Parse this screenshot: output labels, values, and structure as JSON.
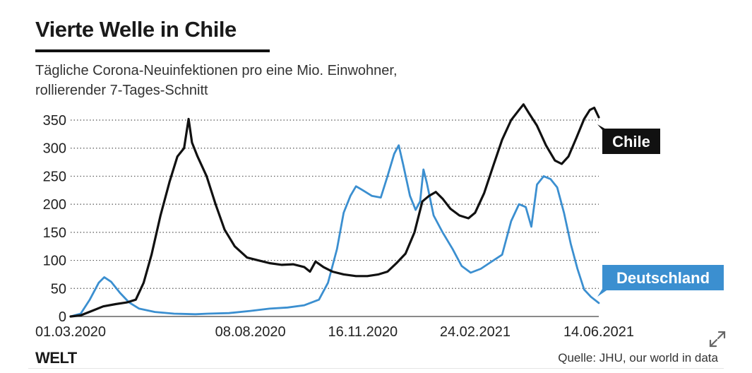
{
  "header": {
    "title": "Vierte Welle in Chile",
    "subtitle_line1": "Tägliche Corona-Neuinfektionen pro eine Mio. Einwohner,",
    "subtitle_line2": "rollierender 7-Tages-Schnitt"
  },
  "footer": {
    "logo": "WELT",
    "source": "Quelle: JHU, our world in data"
  },
  "colors": {
    "chile": "#111111",
    "deutschland": "#3b8fd0",
    "grid": "#555555",
    "axis_text": "#222222"
  },
  "icons": {
    "expand": "expand-icon"
  },
  "chart_data": {
    "type": "line",
    "title": "Vierte Welle in Chile",
    "subtitle": "Tägliche Corona-Neuinfektionen pro eine Mio. Einwohner, rollierender 7-Tages-Schnitt",
    "xlabel": "",
    "ylabel": "",
    "x_ticks": [
      "01.03.2020",
      "08.08.2020",
      "16.11.2020",
      "24.02.2021",
      "14.06.2021"
    ],
    "y_ticks": [
      0,
      50,
      100,
      150,
      200,
      250,
      300,
      350
    ],
    "ylim": [
      0,
      360
    ],
    "xlim": [
      "2020-03-01",
      "2021-06-14"
    ],
    "grid": true,
    "grid_style": "dotted-horizontal",
    "legend": "direct labels at right end of lines",
    "series": [
      {
        "name": "Chile",
        "color": "#111111",
        "points": [
          [
            "2020-03-01",
            0
          ],
          [
            "2020-03-10",
            2
          ],
          [
            "2020-03-20",
            10
          ],
          [
            "2020-03-30",
            18
          ],
          [
            "2020-04-10",
            22
          ],
          [
            "2020-04-20",
            25
          ],
          [
            "2020-04-28",
            30
          ],
          [
            "2020-05-05",
            60
          ],
          [
            "2020-05-12",
            110
          ],
          [
            "2020-05-20",
            180
          ],
          [
            "2020-05-28",
            240
          ],
          [
            "2020-06-04",
            285
          ],
          [
            "2020-06-10",
            300
          ],
          [
            "2020-06-14",
            352
          ],
          [
            "2020-06-17",
            310
          ],
          [
            "2020-06-22",
            285
          ],
          [
            "2020-06-30",
            250
          ],
          [
            "2020-07-08",
            200
          ],
          [
            "2020-07-16",
            155
          ],
          [
            "2020-07-25",
            125
          ],
          [
            "2020-08-05",
            105
          ],
          [
            "2020-08-15",
            100
          ],
          [
            "2020-08-25",
            95
          ],
          [
            "2020-09-05",
            92
          ],
          [
            "2020-09-15",
            93
          ],
          [
            "2020-09-25",
            88
          ],
          [
            "2020-09-30",
            80
          ],
          [
            "2020-10-05",
            98
          ],
          [
            "2020-10-12",
            88
          ],
          [
            "2020-10-20",
            80
          ],
          [
            "2020-10-30",
            75
          ],
          [
            "2020-11-10",
            72
          ],
          [
            "2020-11-20",
            72
          ],
          [
            "2020-11-30",
            75
          ],
          [
            "2020-12-08",
            80
          ],
          [
            "2020-12-16",
            95
          ],
          [
            "2020-12-24",
            112
          ],
          [
            "2021-01-01",
            150
          ],
          [
            "2021-01-08",
            205
          ],
          [
            "2021-01-14",
            215
          ],
          [
            "2021-01-20",
            222
          ],
          [
            "2021-01-26",
            210
          ],
          [
            "2021-02-02",
            192
          ],
          [
            "2021-02-10",
            180
          ],
          [
            "2021-02-18",
            175
          ],
          [
            "2021-02-24",
            185
          ],
          [
            "2021-03-04",
            220
          ],
          [
            "2021-03-12",
            268
          ],
          [
            "2021-03-20",
            315
          ],
          [
            "2021-03-28",
            350
          ],
          [
            "2021-04-04",
            368
          ],
          [
            "2021-04-08",
            378
          ],
          [
            "2021-04-13",
            362
          ],
          [
            "2021-04-20",
            340
          ],
          [
            "2021-04-28",
            305
          ],
          [
            "2021-05-06",
            278
          ],
          [
            "2021-05-12",
            272
          ],
          [
            "2021-05-18",
            285
          ],
          [
            "2021-05-25",
            318
          ],
          [
            "2021-06-01",
            352
          ],
          [
            "2021-06-06",
            368
          ],
          [
            "2021-06-10",
            372
          ],
          [
            "2021-06-14",
            355
          ]
        ]
      },
      {
        "name": "Deutschland",
        "color": "#3b8fd0",
        "points": [
          [
            "2020-03-01",
            0
          ],
          [
            "2020-03-10",
            5
          ],
          [
            "2020-03-18",
            30
          ],
          [
            "2020-03-26",
            60
          ],
          [
            "2020-03-31",
            70
          ],
          [
            "2020-04-06",
            62
          ],
          [
            "2020-04-14",
            42
          ],
          [
            "2020-04-22",
            25
          ],
          [
            "2020-05-01",
            14
          ],
          [
            "2020-05-15",
            8
          ],
          [
            "2020-06-01",
            5
          ],
          [
            "2020-06-20",
            4
          ],
          [
            "2020-07-01",
            5
          ],
          [
            "2020-07-20",
            6
          ],
          [
            "2020-08-08",
            10
          ],
          [
            "2020-08-25",
            14
          ],
          [
            "2020-09-10",
            16
          ],
          [
            "2020-09-25",
            20
          ],
          [
            "2020-10-08",
            30
          ],
          [
            "2020-10-16",
            60
          ],
          [
            "2020-10-24",
            120
          ],
          [
            "2020-10-30",
            185
          ],
          [
            "2020-11-05",
            215
          ],
          [
            "2020-11-10",
            232
          ],
          [
            "2020-11-16",
            225
          ],
          [
            "2020-11-24",
            215
          ],
          [
            "2020-12-02",
            212
          ],
          [
            "2020-12-08",
            250
          ],
          [
            "2020-12-14",
            290
          ],
          [
            "2020-12-18",
            305
          ],
          [
            "2020-12-22",
            270
          ],
          [
            "2020-12-28",
            215
          ],
          [
            "2021-01-02",
            190
          ],
          [
            "2021-01-06",
            205
          ],
          [
            "2021-01-09",
            262
          ],
          [
            "2021-01-12",
            238
          ],
          [
            "2021-01-18",
            180
          ],
          [
            "2021-01-26",
            150
          ],
          [
            "2021-02-04",
            120
          ],
          [
            "2021-02-12",
            90
          ],
          [
            "2021-02-20",
            78
          ],
          [
            "2021-03-01",
            85
          ],
          [
            "2021-03-10",
            97
          ],
          [
            "2021-03-20",
            110
          ],
          [
            "2021-03-28",
            170
          ],
          [
            "2021-04-04",
            200
          ],
          [
            "2021-04-10",
            195
          ],
          [
            "2021-04-15",
            160
          ],
          [
            "2021-04-20",
            235
          ],
          [
            "2021-04-26",
            250
          ],
          [
            "2021-05-02",
            245
          ],
          [
            "2021-05-08",
            230
          ],
          [
            "2021-05-14",
            185
          ],
          [
            "2021-05-20",
            130
          ],
          [
            "2021-05-26",
            85
          ],
          [
            "2021-06-01",
            48
          ],
          [
            "2021-06-07",
            35
          ],
          [
            "2021-06-14",
            24
          ]
        ]
      }
    ],
    "annotations": [
      "Chile",
      "Deutschland"
    ]
  }
}
